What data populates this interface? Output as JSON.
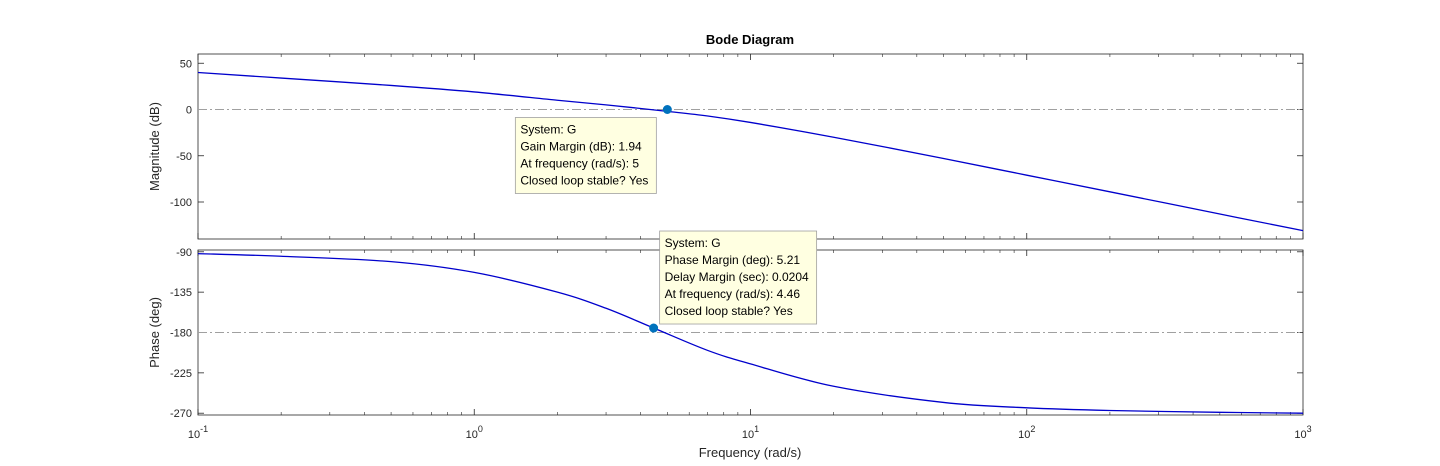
{
  "chart_data": {
    "type": "line",
    "title": "Bode Diagram",
    "xlabel": "Frequency  (rad/s)",
    "x_scale": "log",
    "xlim": [
      0.1,
      1000
    ],
    "x_ticks": [
      {
        "value": 0.1,
        "base": "10",
        "exp": "-1"
      },
      {
        "value": 1,
        "base": "10",
        "exp": "0"
      },
      {
        "value": 10,
        "base": "10",
        "exp": "1"
      },
      {
        "value": 100,
        "base": "10",
        "exp": "2"
      },
      {
        "value": 1000,
        "base": "10",
        "exp": "3"
      }
    ],
    "line_color": "#0000cc",
    "marker_color": "#0072bd",
    "reference_line_color": "#a0a0a0",
    "tooltip_bg": "#ffffe1",
    "tooltip_border": "#a0a0a0",
    "panels": [
      {
        "id": "magnitude",
        "ylabel": "Magnitude (dB)",
        "ylim": [
          -140,
          60
        ],
        "y_ticks": [
          50,
          0,
          -50,
          -100
        ],
        "y_tick_labels": [
          "50",
          "0",
          "-50",
          "-100"
        ],
        "reference_line": 0,
        "x": [
          0.1,
          0.2,
          0.5,
          1,
          2,
          3,
          5,
          7,
          10,
          20,
          50,
          100,
          200,
          500,
          1000
        ],
        "y": [
          40,
          34,
          26,
          19,
          10,
          5,
          -2,
          -7,
          -14,
          -30,
          -53,
          -71,
          -89,
          -113,
          -131
        ],
        "marker": {
          "x": 5,
          "y": 0
        },
        "tooltip": {
          "lines": [
            "System: G",
            "Gain Margin (dB): 1.94",
            "At frequency (rad/s): 5",
            "Closed loop stable? Yes"
          ]
        }
      },
      {
        "id": "phase",
        "ylabel": "Phase (deg)",
        "ylim": [
          -272,
          -88
        ],
        "y_ticks": [
          -90,
          -135,
          -180,
          -225,
          -270
        ],
        "y_tick_labels": [
          "-90",
          "-135",
          "-180",
          "-225",
          "-270"
        ],
        "reference_line": -180,
        "x": [
          0.1,
          0.2,
          0.5,
          1,
          2,
          3,
          4.46,
          7,
          10,
          20,
          50,
          100,
          200,
          500,
          1000
        ],
        "y": [
          -92,
          -95,
          -101,
          -113,
          -135,
          -153,
          -175,
          -200,
          -215,
          -240,
          -258,
          -264,
          -267,
          -269,
          -270
        ],
        "marker": {
          "x": 4.46,
          "y": -175
        },
        "tooltip": {
          "lines": [
            "System: G",
            "Phase Margin (deg): 5.21",
            "Delay Margin (sec): 0.0204",
            "At frequency (rad/s): 4.46",
            "Closed loop stable? Yes"
          ]
        }
      }
    ]
  }
}
